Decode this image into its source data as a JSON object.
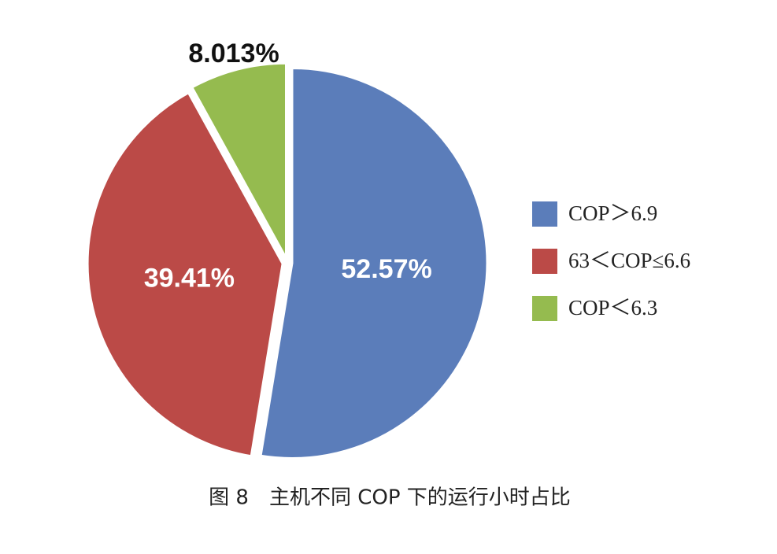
{
  "chart_data": {
    "type": "pie",
    "caption": "图 8　主机不同 COP 下的运行小时占比",
    "categories": [
      "COP＞6.9",
      "63＜COP≤6.6",
      "COP＜6.3"
    ],
    "values": [
      52.57,
      39.41,
      8.013
    ],
    "value_labels": [
      "52.57%",
      "39.41%",
      "8.013%"
    ],
    "colors": [
      "#5b7dba",
      "#bb4a47",
      "#95bb4f"
    ],
    "legend": "right"
  }
}
